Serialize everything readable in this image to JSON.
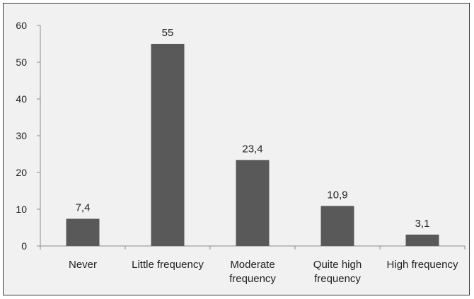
{
  "chart_data": {
    "type": "bar",
    "categories": [
      [
        "Never"
      ],
      [
        "Little frequency"
      ],
      [
        "Moderate",
        "frequency"
      ],
      [
        "Quite high",
        "frequency"
      ],
      [
        "High frequency"
      ]
    ],
    "values": [
      7.4,
      55,
      23.4,
      10.9,
      3.1
    ],
    "data_labels": [
      "7,4",
      "55",
      "23,4",
      "10,9",
      "3,1"
    ],
    "y_ticks": [
      "0",
      "10",
      "20",
      "30",
      "40",
      "50",
      "60"
    ],
    "ylim": [
      0,
      60
    ],
    "title": "",
    "xlabel": "",
    "ylabel": "",
    "grid": false,
    "colors": {
      "bar": "#595959",
      "axis": "#8c8c8c",
      "background": "#f1f1f1",
      "text": "#222222"
    }
  }
}
